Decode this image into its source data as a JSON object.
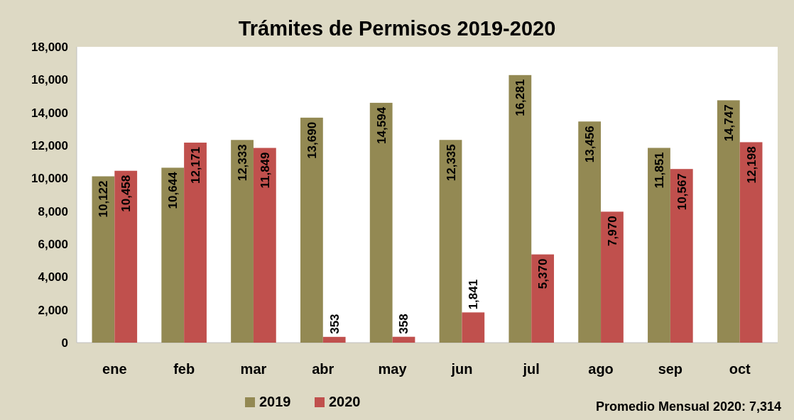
{
  "chart_data": {
    "type": "bar",
    "title": "Trámites de Permisos 2019-2020",
    "categories": [
      "ene",
      "feb",
      "mar",
      "abr",
      "may",
      "jun",
      "jul",
      "ago",
      "sep",
      "oct"
    ],
    "series": [
      {
        "name": "2019",
        "color": "#938953",
        "values": [
          10122,
          10644,
          12333,
          13690,
          14594,
          12335,
          16281,
          13456,
          11851,
          14747
        ],
        "value_labels": [
          "10,122",
          "10,644",
          "12,333",
          "13,690",
          "14,594",
          "12,335",
          "16,281",
          "13,456",
          "11,851",
          "14,747"
        ]
      },
      {
        "name": "2020",
        "color": "#c0504d",
        "values": [
          10458,
          12171,
          11849,
          353,
          358,
          1841,
          5370,
          7970,
          10567,
          12198
        ],
        "value_labels": [
          "10,458",
          "12,171",
          "11,849",
          "353",
          "358",
          "1,841",
          "5,370",
          "7,970",
          "10,567",
          "12,198"
        ]
      }
    ],
    "ylim": [
      0,
      18000
    ],
    "yticks": [
      {
        "value": 0,
        "label": "0"
      },
      {
        "value": 2000,
        "label": "2,000"
      },
      {
        "value": 4000,
        "label": "4,000"
      },
      {
        "value": 6000,
        "label": "6,000"
      },
      {
        "value": 8000,
        "label": "8,000"
      },
      {
        "value": 10000,
        "label": "10,000"
      },
      {
        "value": 12000,
        "label": "12,000"
      },
      {
        "value": 14000,
        "label": "14,000"
      },
      {
        "value": 16000,
        "label": "16,000"
      },
      {
        "value": 18000,
        "label": "18,000"
      }
    ],
    "grid": false,
    "legend": "bottom",
    "annotations": [
      "Promedio Mensual 2020: 7,314"
    ]
  }
}
